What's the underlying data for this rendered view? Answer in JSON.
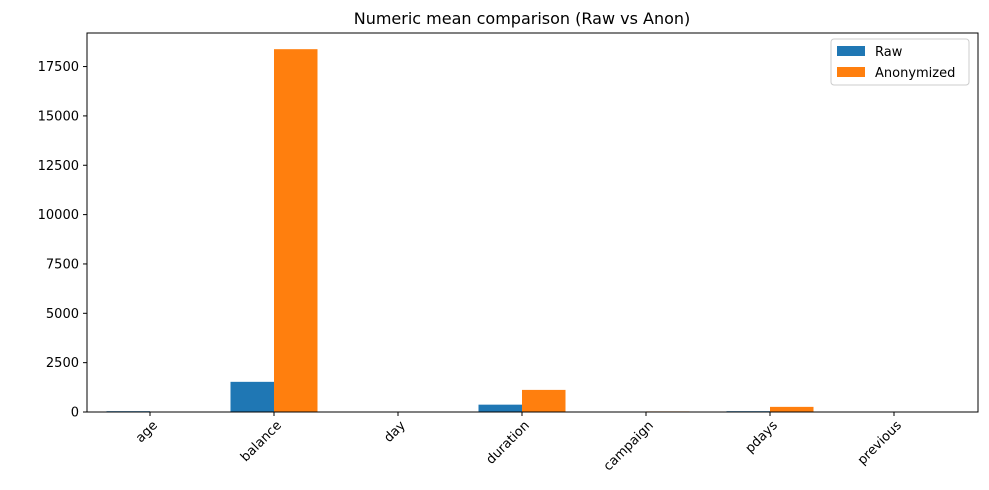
{
  "chart_data": {
    "type": "bar",
    "title": "Numeric mean comparison (Raw vs Anon)",
    "xlabel": "",
    "ylabel": "",
    "categories": [
      "age",
      "balance",
      "day",
      "duration",
      "campaign",
      "pdays",
      "previous"
    ],
    "series": [
      {
        "name": "Raw",
        "color": "#1f77b4",
        "values": [
          41,
          1528,
          16,
          372,
          3,
          41,
          1
        ]
      },
      {
        "name": "Anonymized",
        "color": "#ff7f0e",
        "values": [
          4,
          18380,
          2,
          1120,
          30,
          260,
          20
        ]
      }
    ],
    "ylim": [
      0,
      19200
    ],
    "yticks": [
      0,
      2500,
      5000,
      7500,
      10000,
      12500,
      15000,
      17500
    ],
    "ytick_labels": [
      "0",
      "2500",
      "5000",
      "7500",
      "10000",
      "12500",
      "15000",
      "17500"
    ],
    "grid": false,
    "legend_position": "top-right",
    "xtick_rotation": 45
  }
}
